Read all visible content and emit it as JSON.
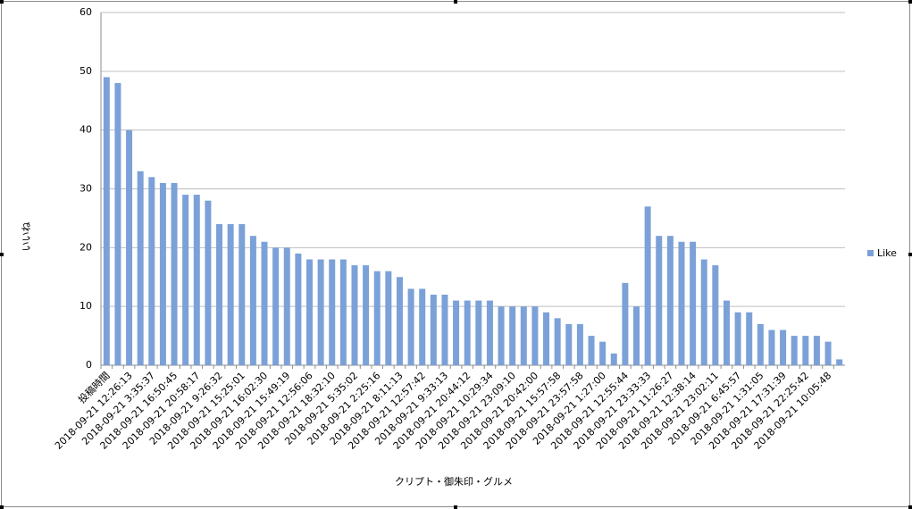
{
  "chart_data": {
    "type": "bar",
    "x_label": "クリプト・御朱印・グルメ",
    "y_label": "いいね",
    "categories": [
      "投稿時間",
      null,
      "2018-09-21 12:26:13",
      null,
      "2018-09-21 3:35:37",
      null,
      "2018-09-21 16:50:45",
      null,
      "2018-09-21 20:58:17",
      null,
      "2018-09-21 9:26:32",
      null,
      "2018-09-21 15:25:01",
      null,
      "2018-09-21 16:02:30",
      null,
      "2018-09-21 15:49:19",
      null,
      "2018-09-21 12:56:06",
      null,
      "2018-09-21 18:32:10",
      null,
      "2018-09-21 5:35:02",
      null,
      "2018-09-21 2:25:16",
      null,
      "2018-09-21 8:11:13",
      null,
      "2018-09-21 12:57:42",
      null,
      "2018-09-21 9:33:13",
      null,
      "2018-09-21 20:44:12",
      null,
      "2018-09-21 10:29:34",
      null,
      "2018-09-21 23:09:10",
      null,
      "2018-09-21 20:42:00",
      null,
      "2018-09-21 15:57:58",
      null,
      "2018-09-21 23:57:58",
      null,
      "2018-09-21 1:27:00",
      null,
      "2018-09-21 12:55:44",
      null,
      "2018-09-21 23:33:33",
      null,
      "2018-09-21 11:26:27",
      null,
      "2018-09-21 12:38:14",
      null,
      "2018-09-21 23:02:11",
      null,
      "2018-09-21 6:45:57",
      null,
      "2018-09-21 1:31:05",
      null,
      "2018-09-21 17:31:39",
      null,
      "2018-09-21 22:25:42",
      null,
      "2018-09-21 10:05:48",
      null
    ],
    "series": [
      {
        "name": "Like",
        "color": "#7ba1d8",
        "values": [
          49,
          48,
          40,
          33,
          32,
          31,
          31,
          29,
          29,
          28,
          24,
          24,
          24,
          22,
          21,
          20,
          20,
          19,
          18,
          18,
          18,
          18,
          17,
          17,
          16,
          16,
          15,
          13,
          13,
          12,
          12,
          11,
          11,
          11,
          11,
          10,
          10,
          10,
          10,
          9,
          8,
          7,
          7,
          5,
          4,
          2,
          14,
          10,
          27,
          22,
          22,
          21,
          21,
          18,
          17,
          11,
          9,
          9,
          7,
          6,
          6,
          5,
          5,
          5,
          4,
          1
        ]
      }
    ],
    "ylim": [
      0,
      60
    ],
    "yticks": [
      0,
      10,
      20,
      30,
      40,
      50,
      60
    ],
    "grid": true,
    "legend": "right"
  }
}
